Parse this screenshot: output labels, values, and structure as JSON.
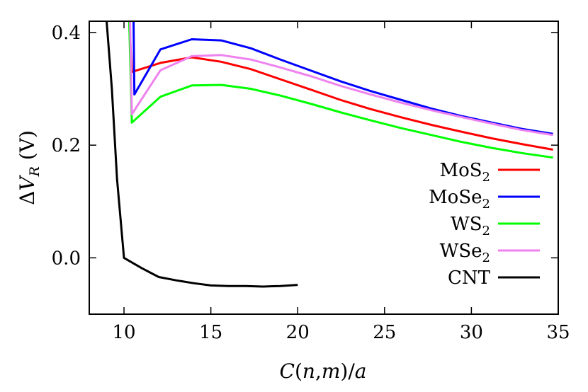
{
  "chart_data": {
    "type": "line",
    "xlabel": "C(n,m)/a",
    "ylabel": "ΔV_R (V)",
    "xlim": [
      8,
      35
    ],
    "ylim": [
      -0.1,
      0.42
    ],
    "xticks": [
      10,
      15,
      20,
      25,
      30,
      35
    ],
    "yticks": [
      0.0,
      0.2,
      0.4
    ],
    "ytick_labels": [
      "0.0",
      "0.2",
      "0.4"
    ],
    "legend_position": "right",
    "series": [
      {
        "name": "MoS",
        "sub": "2",
        "color": "#ff0000",
        "x": [
          10.3,
          10.45,
          12.1,
          13.9,
          15.6,
          17.3,
          19.0,
          20.8,
          22.5,
          24.2,
          26.0,
          27.7,
          29.4,
          31.2,
          32.9,
          34.7
        ],
        "y": [
          0.42,
          0.33,
          0.346,
          0.356,
          0.348,
          0.335,
          0.317,
          0.298,
          0.28,
          0.264,
          0.249,
          0.236,
          0.224,
          0.212,
          0.202,
          0.192
        ]
      },
      {
        "name": "MoSe",
        "sub": "2",
        "color": "#0000ff",
        "x": [
          10.55,
          10.6,
          12.1,
          13.9,
          15.6,
          17.3,
          19.0,
          20.8,
          22.5,
          24.2,
          26.0,
          27.7,
          29.4,
          31.2,
          32.9,
          34.7
        ],
        "y": [
          0.42,
          0.29,
          0.37,
          0.388,
          0.386,
          0.372,
          0.352,
          0.332,
          0.313,
          0.296,
          0.28,
          0.265,
          0.252,
          0.24,
          0.229,
          0.22
        ]
      },
      {
        "name": "WS",
        "sub": "2",
        "color": "#00ff00",
        "x": [
          10.3,
          10.45,
          12.1,
          13.9,
          15.6,
          17.3,
          19.0,
          20.8,
          22.5,
          24.2,
          26.0,
          27.7,
          29.4,
          31.2,
          32.9,
          34.7
        ],
        "y": [
          0.42,
          0.24,
          0.286,
          0.306,
          0.307,
          0.3,
          0.288,
          0.273,
          0.258,
          0.244,
          0.23,
          0.218,
          0.206,
          0.195,
          0.186,
          0.178
        ]
      },
      {
        "name": "WSe",
        "sub": "2",
        "color": "#ee82ee",
        "x": [
          10.35,
          10.45,
          12.1,
          13.9,
          15.6,
          17.3,
          19.0,
          20.8,
          22.5,
          24.2,
          26.0,
          27.7,
          29.4,
          31.2,
          32.9,
          34.7
        ],
        "y": [
          0.42,
          0.255,
          0.333,
          0.358,
          0.36,
          0.352,
          0.338,
          0.322,
          0.305,
          0.29,
          0.275,
          0.262,
          0.25,
          0.238,
          0.227,
          0.218
        ]
      },
      {
        "name": "CNT",
        "sub": "",
        "color": "#000000",
        "x": [
          9.0,
          9.3,
          9.6,
          10.0,
          11.0,
          12.0,
          13.0,
          14.0,
          15.0,
          16.0,
          17.0,
          18.0,
          19.0,
          20.0
        ],
        "y": [
          0.42,
          0.3,
          0.14,
          0.0,
          -0.018,
          -0.034,
          -0.04,
          -0.045,
          -0.049,
          -0.05,
          -0.05,
          -0.051,
          -0.05,
          -0.048
        ]
      }
    ]
  }
}
